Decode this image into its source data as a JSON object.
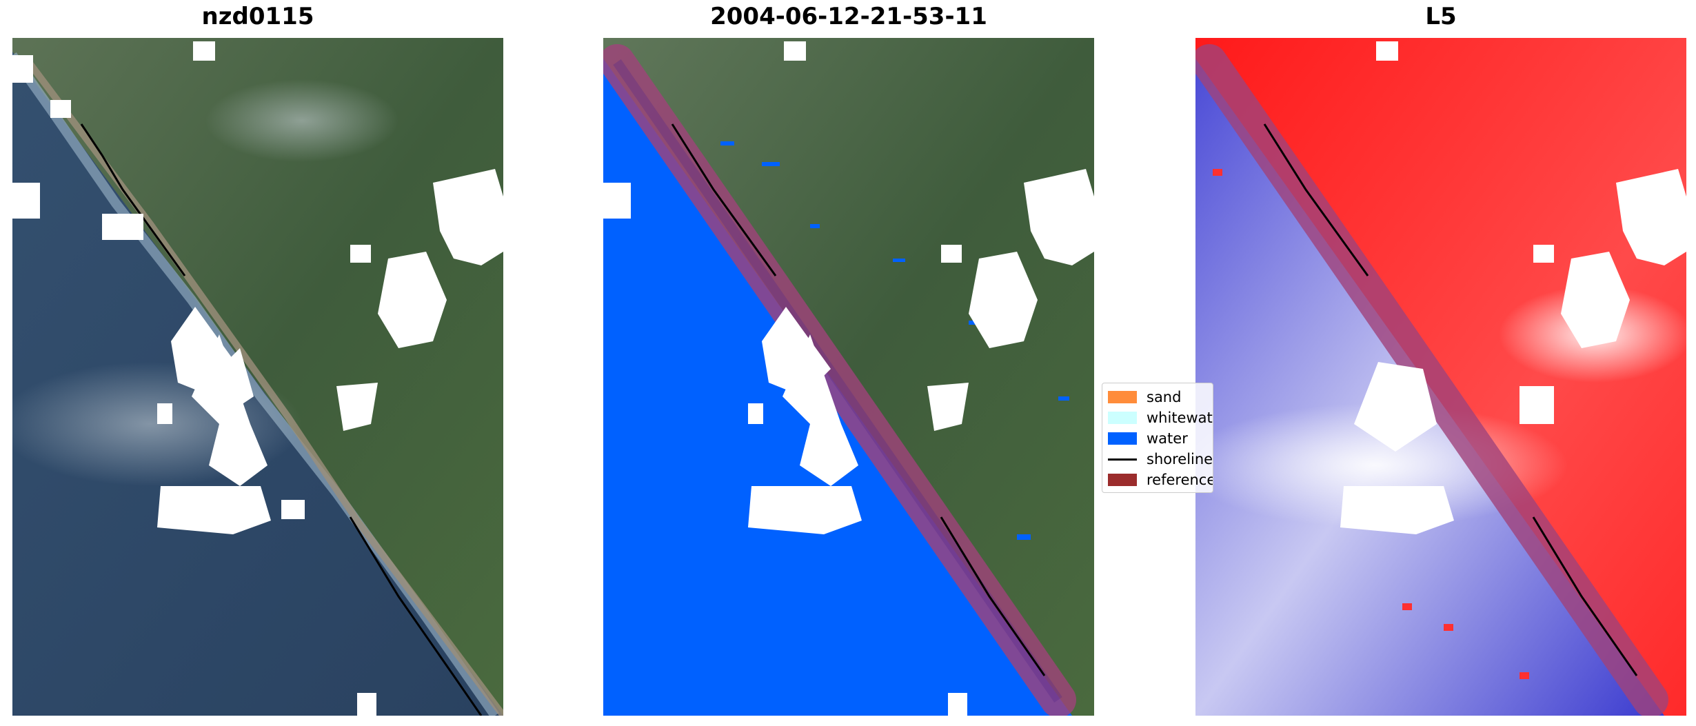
{
  "panels": [
    {
      "title": "nzd0115",
      "kind": "rgb-image"
    },
    {
      "title": "2004-06-12-21-53-11",
      "kind": "classified-image"
    },
    {
      "title": "L5",
      "kind": "index-image"
    }
  ],
  "legend": {
    "items": [
      {
        "label": "sand",
        "color": "#ff8c3a",
        "type": "patch"
      },
      {
        "label": "whitewater",
        "color": "#ccffff",
        "type": "patch"
      },
      {
        "label": "water",
        "color": "#0061ff",
        "type": "patch"
      },
      {
        "label": "shoreline",
        "color": "#000000",
        "type": "line"
      },
      {
        "label": "reference",
        "color": "#9b2c2c",
        "type": "patch"
      }
    ]
  },
  "colors": {
    "ocean_dark": "#2f4763",
    "land_green": "#4f6a4a",
    "cloud_mask": "#ffffff",
    "water_class": "#0061ff",
    "reference_band": "#a0427a",
    "index_land": "#ff2a2a",
    "index_water": "#3a3acf"
  }
}
